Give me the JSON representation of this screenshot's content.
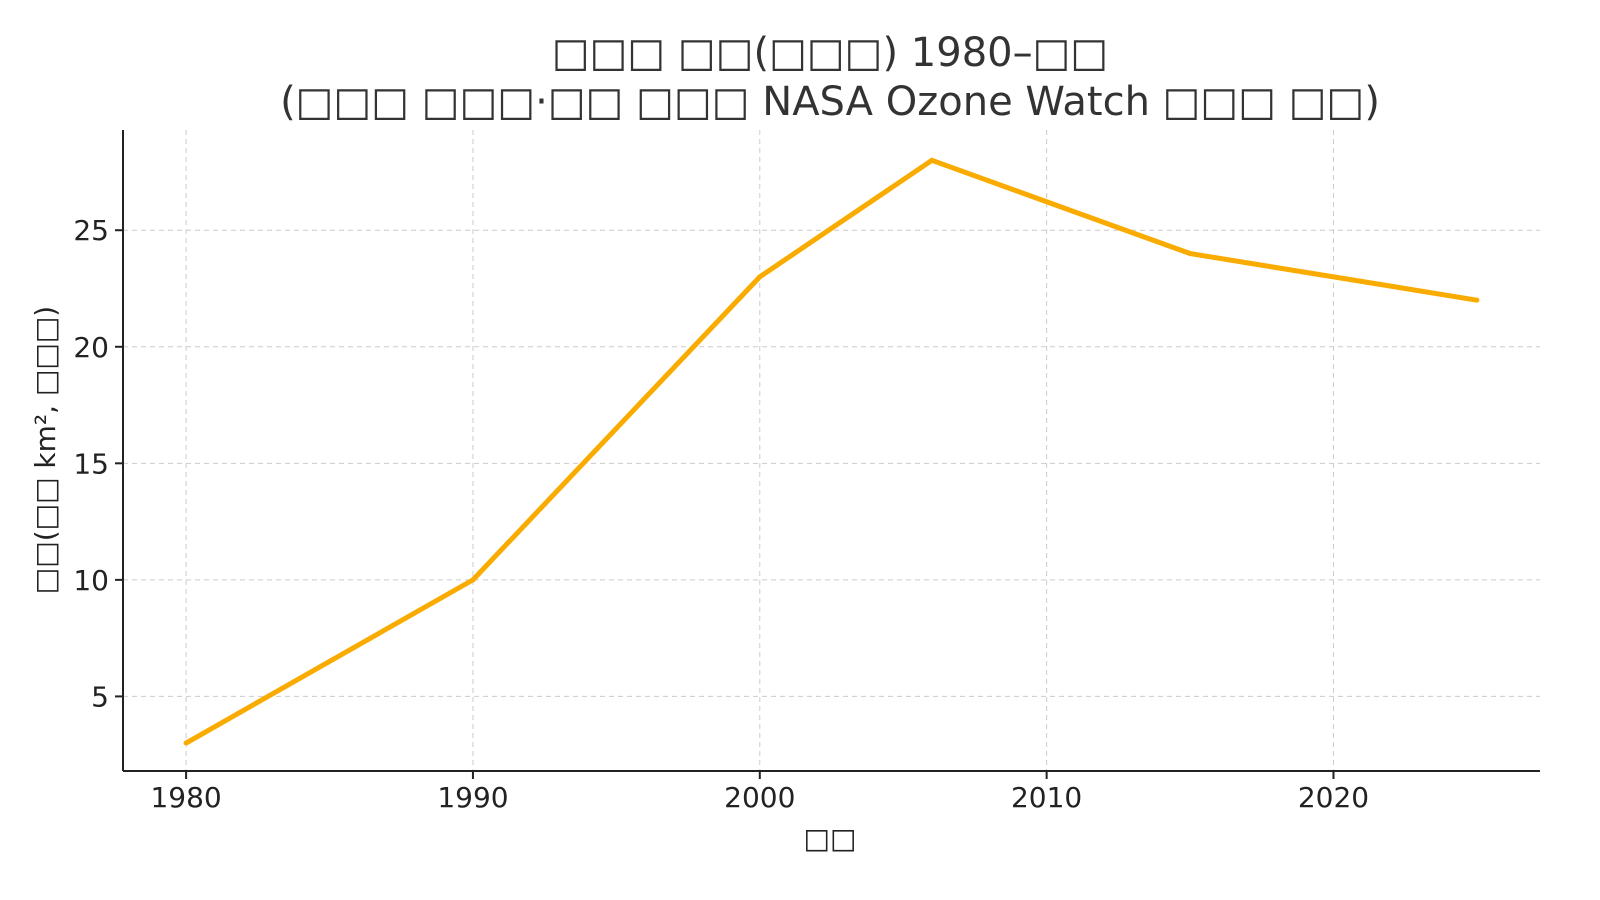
{
  "chart_data": {
    "type": "line",
    "title_line1": "□□□ □□(□□□) 1980–□□",
    "title_line2": "(□□□ □□□·□□ □□□ NASA Ozone Watch □□□ □□)",
    "xlabel": "□□",
    "ylabel": "□□(□□ km², □□□)",
    "x": [
      1980,
      1990,
      2000,
      2006,
      2015,
      2025
    ],
    "series": [
      {
        "values": [
          3,
          10,
          23,
          28,
          24,
          22
        ],
        "color": "#F9AB00"
      }
    ],
    "xlim": [
      1977.8,
      2027.2
    ],
    "ylim": [
      1.8,
      29.3
    ],
    "xticks": [
      1980,
      1990,
      2000,
      2010,
      2020
    ],
    "yticks": [
      5,
      10,
      15,
      20,
      25
    ],
    "grid": true,
    "legend": "none"
  }
}
